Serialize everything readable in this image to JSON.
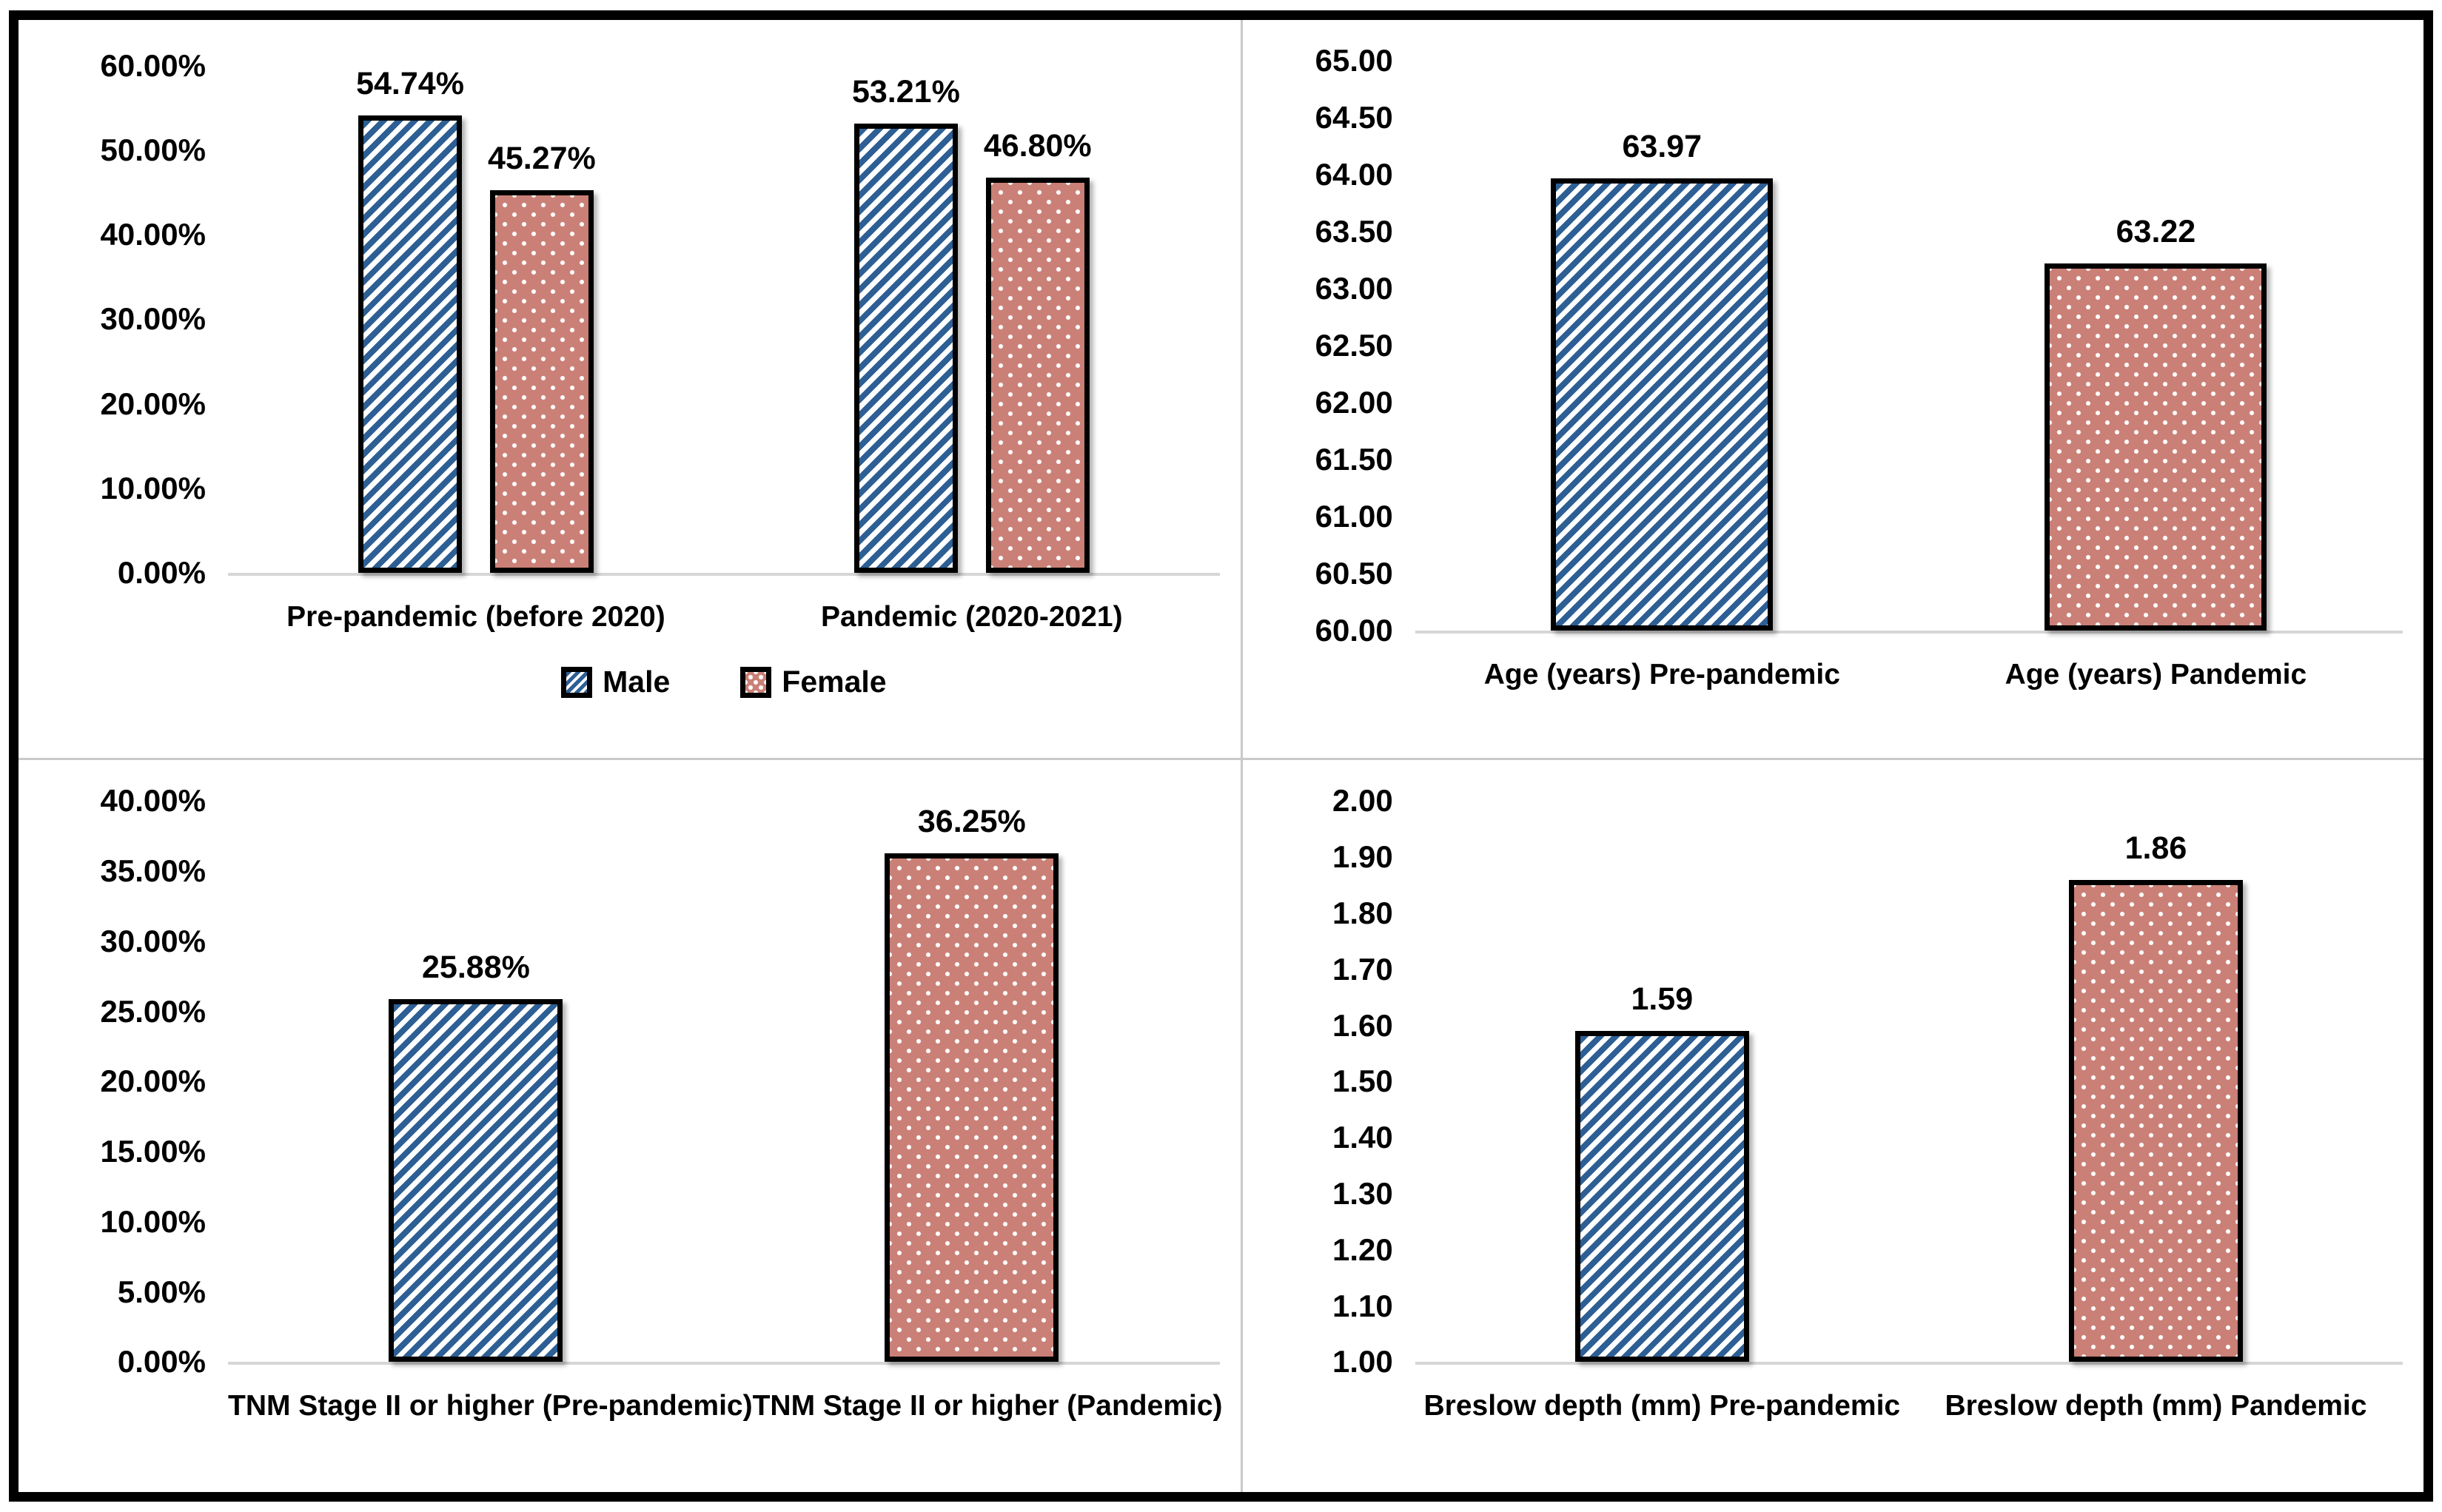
{
  "colors": {
    "male_hatch_blue": "#2d5f94",
    "female_fill_salmon": "#ca8076",
    "pattern_accent_white": "#ffffff",
    "bar_border": "#000000",
    "baseline_gray": "#d6d6d6",
    "frame_border": "#000000"
  },
  "chart_data": [
    {
      "type": "bar",
      "title": "",
      "xlabel": "",
      "ylabel": "",
      "ylim": [
        0,
        60
      ],
      "grid": false,
      "legend_position": "bottom",
      "yticks": [
        "60.00%",
        "50.00%",
        "40.00%",
        "30.00%",
        "20.00%",
        "10.00%",
        "0.00%"
      ],
      "categories": [
        "Pre-pandemic (before 2020)",
        "Pandemic (2020-2021)"
      ],
      "series": [
        {
          "name": "Male",
          "values": [
            54.74,
            53.21
          ]
        },
        {
          "name": "Female",
          "values": [
            45.27,
            46.8
          ]
        }
      ],
      "bars": [
        [
          {
            "series": "Male",
            "value": 54.74,
            "label": "54.74%",
            "pattern": "hatch"
          },
          {
            "series": "Female",
            "value": 45.27,
            "label": "45.27%",
            "pattern": "dots"
          }
        ],
        [
          {
            "series": "Male",
            "value": 53.21,
            "label": "53.21%",
            "pattern": "hatch"
          },
          {
            "series": "Female",
            "value": 46.8,
            "label": "46.80%",
            "pattern": "dots"
          }
        ]
      ],
      "legend": [
        {
          "label": "Male",
          "pattern": "hatch"
        },
        {
          "label": "Female",
          "pattern": "dots"
        }
      ]
    },
    {
      "type": "bar",
      "title": "",
      "xlabel": "",
      "ylabel": "",
      "ylim": [
        60,
        65
      ],
      "grid": false,
      "yticks": [
        "65.00",
        "64.50",
        "64.00",
        "63.50",
        "63.00",
        "62.50",
        "62.00",
        "61.50",
        "61.00",
        "60.50",
        "60.00"
      ],
      "categories": [
        "Age (years) Pre-pandemic",
        "Age (years) Pandemic"
      ],
      "bars": [
        [
          {
            "series": "Pre-pandemic",
            "value": 63.97,
            "label": "63.97",
            "pattern": "hatch"
          }
        ],
        [
          {
            "series": "Pandemic",
            "value": 63.22,
            "label": "63.22",
            "pattern": "dots"
          }
        ]
      ]
    },
    {
      "type": "bar",
      "title": "",
      "xlabel": "",
      "ylabel": "",
      "ylim": [
        0,
        40
      ],
      "grid": false,
      "yticks": [
        "40.00%",
        "35.00%",
        "30.00%",
        "25.00%",
        "20.00%",
        "15.00%",
        "10.00%",
        "5.00%",
        "0.00%"
      ],
      "categories": [
        "TNM Stage II or higher (Pre-pandemic)",
        "TNM Stage II or higher (Pandemic)"
      ],
      "bars": [
        [
          {
            "series": "Pre-pandemic",
            "value": 25.88,
            "label": "25.88%",
            "pattern": "hatch"
          }
        ],
        [
          {
            "series": "Pandemic",
            "value": 36.25,
            "label": "36.25%",
            "pattern": "dots"
          }
        ]
      ]
    },
    {
      "type": "bar",
      "title": "",
      "xlabel": "",
      "ylabel": "",
      "ylim": [
        1,
        2
      ],
      "grid": false,
      "yticks": [
        "2.00",
        "1.90",
        "1.80",
        "1.70",
        "1.60",
        "1.50",
        "1.40",
        "1.30",
        "1.20",
        "1.10",
        "1.00"
      ],
      "categories": [
        "Breslow depth (mm) Pre-pandemic",
        "Breslow depth (mm) Pandemic"
      ],
      "bars": [
        [
          {
            "series": "Pre-pandemic",
            "value": 1.59,
            "label": "1.59",
            "pattern": "hatch"
          }
        ],
        [
          {
            "series": "Pandemic",
            "value": 1.86,
            "label": "1.86",
            "pattern": "dots"
          }
        ]
      ]
    }
  ]
}
